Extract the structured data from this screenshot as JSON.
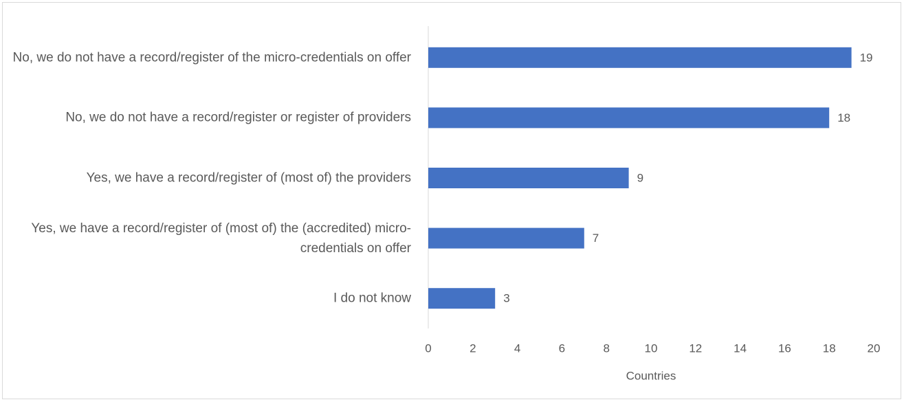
{
  "chart_data": {
    "type": "bar",
    "orientation": "horizontal",
    "categories": [
      "No, we do not have a record/register of the micro-credentials on offer",
      "No, we do not have a record/register or register of providers",
      "Yes, we have a record/register of (most of) the providers",
      "Yes, we have a record/register of (most of) the (accredited) micro-credentials on offer",
      "I do not know"
    ],
    "values": [
      19,
      18,
      9,
      7,
      3
    ],
    "color": "#4472c4",
    "xlabel": "Countries",
    "xlim": [
      0,
      20
    ],
    "xticks": [
      0,
      2,
      4,
      6,
      8,
      10,
      12,
      14,
      16,
      18,
      20
    ],
    "grid": false
  }
}
